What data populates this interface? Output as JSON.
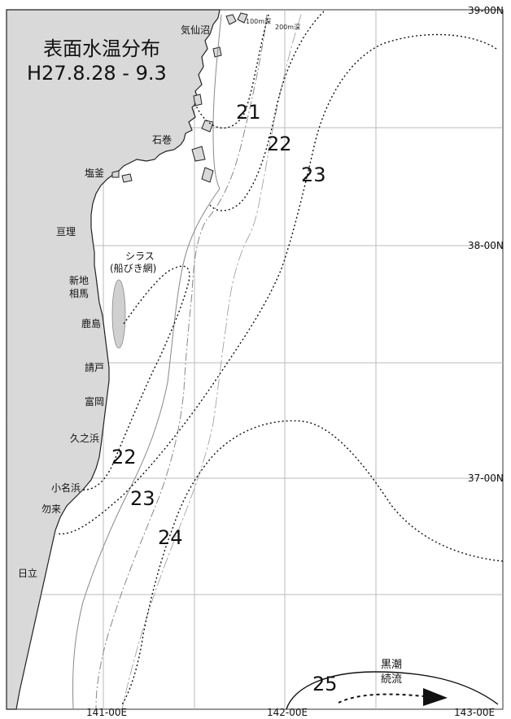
{
  "title": {
    "line1": "表面水温分布",
    "line2": "H27.8.28 - 9.3"
  },
  "grid_labels": {
    "lat_39": "39-00N",
    "lat_38": "38-00N",
    "lat_37": "37-00N",
    "lon_141": "141-00E",
    "lon_142": "142-00E",
    "lon_143": "143-00E"
  },
  "places": {
    "kesennuma": "気仙沼",
    "ishinomaki": "石巻",
    "shiogama": "塩釜",
    "watari": "亘理",
    "shinchi": "新地",
    "soma": "相馬",
    "kashima": "鹿島",
    "ukedo": "請戸",
    "tomioka": "富岡",
    "hisanohama": "久之浜",
    "onahama": "小名浜",
    "nakoso": "勿来",
    "hitachi": "日立"
  },
  "depth_labels": {
    "d100": "100m深",
    "d200": "200m深"
  },
  "shirasu": {
    "line1": "シラス",
    "line2": "(船びき網)"
  },
  "kuroshio": {
    "line1": "黒潮",
    "line2": "続流"
  },
  "isotherms": {
    "t21": "21",
    "t22_north": "22",
    "t23_north": "23",
    "t22_south": "22",
    "t23_south": "23",
    "t24": "24",
    "t25": "25"
  },
  "colors": {
    "land": "#d9d9d9",
    "coast": "#222222",
    "grid": "#bbbbbb",
    "isotherm": "#111111",
    "shirasu_area": "#d0d0d0"
  }
}
